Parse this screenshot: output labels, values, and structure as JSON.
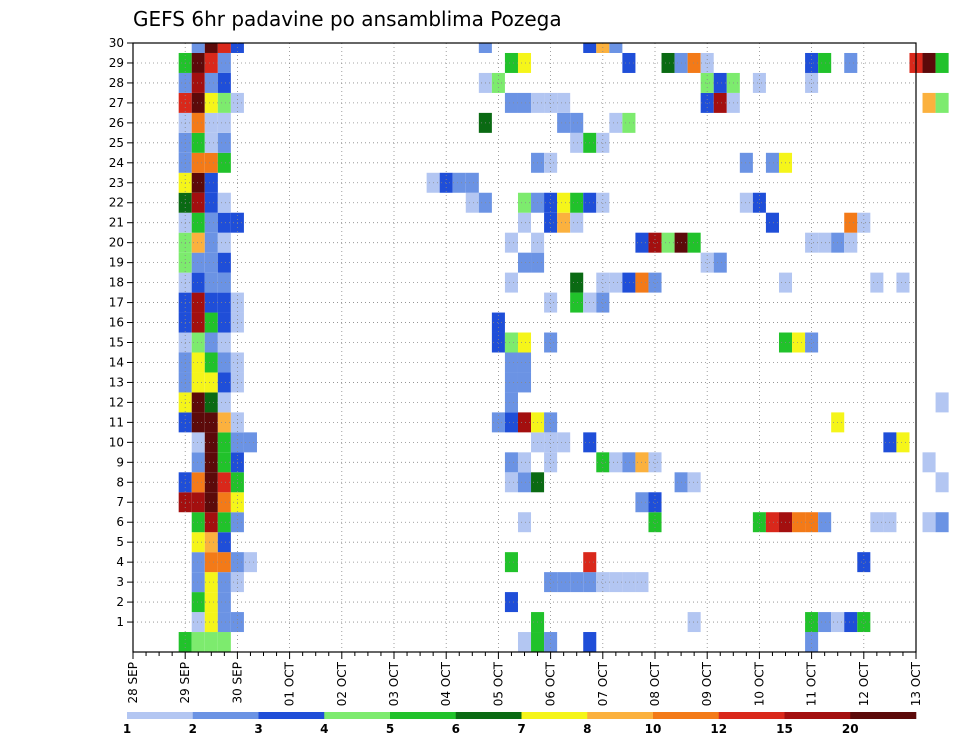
{
  "chart_data": {
    "type": "heatmap",
    "title": "GEFS 6hr padavine po ansamblima Pozega",
    "x_labels": [
      "28 SEP",
      "29 SEP",
      "30 SEP",
      "01 OCT",
      "02 OCT",
      "03 OCT",
      "04 OCT",
      "05 OCT",
      "06 OCT",
      "07 OCT",
      "08 OCT",
      "09 OCT",
      "10 OCT",
      "11 OCT",
      "12 OCT",
      "13 OCT"
    ],
    "y_labels": [
      "1",
      "2",
      "3",
      "4",
      "5",
      "6",
      "7",
      "8",
      "9",
      "10",
      "11",
      "12",
      "13",
      "14",
      "15",
      "16",
      "17",
      "18",
      "19",
      "20",
      "21",
      "22",
      "23",
      "24",
      "25",
      "26",
      "27",
      "28",
      "29",
      "30"
    ],
    "members": 30,
    "steps_per_day": 4,
    "steps": 61,
    "x_start": "28 SEP 00Z",
    "grid": true,
    "levels": [
      1,
      2,
      3,
      4,
      5,
      6,
      7,
      8,
      10,
      12,
      15,
      20
    ],
    "level_labels": [
      "1",
      "2",
      "3",
      "4",
      "5",
      "6",
      "7",
      "8",
      "10",
      "12",
      "15",
      "20"
    ],
    "colors": [
      "#b3c6f2",
      "#6b93e4",
      "#1f4ed8",
      "#7deb6e",
      "#21c22b",
      "#0a6a13",
      "#f5f51a",
      "#fbb13e",
      "#f37a18",
      "#d9281b",
      "#a30f0f",
      "#5c0a0a"
    ],
    "precip": {
      "1": {
        "5": 1,
        "6": 7,
        "7": 2,
        "8": 2,
        "31": 5,
        "43": 1,
        "52": 5,
        "53": 2,
        "54": 1,
        "55": 3,
        "56": 5
      },
      "2": {
        "5": 5,
        "6": 7,
        "7": 2,
        "29": 3
      },
      "3": {
        "5": 2,
        "6": 7,
        "7": 2,
        "8": 1,
        "32": 2,
        "33": 2,
        "34": 2,
        "35": 2,
        "36": 1,
        "37": 1,
        "38": 1,
        "39": 1
      },
      "4": {
        "5": 2,
        "6": 9,
        "7": 9,
        "8": 2,
        "9": 1,
        "29": 5,
        "35": 10,
        "56": 3
      },
      "5": {
        "5": 7,
        "6": 8,
        "7": 3
      },
      "6": {
        "5": 5,
        "6": 11,
        "7": 5,
        "8": 2,
        "30": 1,
        "40": 5,
        "48": 5,
        "49": 10,
        "50": 11,
        "51": 9,
        "52": 9,
        "53": 2,
        "57": 1,
        "58": 1,
        "61": 1,
        "62": 2
      },
      "7": {
        "4": 11,
        "5": 11,
        "6": 12,
        "7": 9,
        "8": 7,
        "39": 2,
        "40": 3
      },
      "8": {
        "4": 3,
        "5": 9,
        "6": 12,
        "7": 10,
        "8": 5,
        "29": 1,
        "30": 2,
        "31": 6,
        "42": 2,
        "43": 1,
        "62": 1
      },
      "9": {
        "5": 2,
        "6": 12,
        "7": 5,
        "8": 3,
        "29": 2,
        "30": 1,
        "32": 1,
        "36": 5,
        "37": 1,
        "38": 2,
        "39": 8,
        "40": 1,
        "61": 1
      },
      "10": {
        "5": 1,
        "6": 12,
        "7": 5,
        "8": 2,
        "9": 2,
        "31": 1,
        "32": 1,
        "33": 1,
        "35": 3,
        "58": 3,
        "59": 7
      },
      "11": {
        "4": 3,
        "5": 12,
        "6": 12,
        "7": 8,
        "8": 1,
        "28": 2,
        "29": 3,
        "30": 11,
        "31": 7,
        "32": 2,
        "54": 7
      },
      "12": {
        "4": 7,
        "5": 12,
        "6": 6,
        "7": 1,
        "29": 2,
        "62": 1
      },
      "13": {
        "4": 2,
        "5": 7,
        "6": 7,
        "7": 3,
        "8": 1,
        "29": 2,
        "30": 2
      },
      "14": {
        "4": 2,
        "5": 7,
        "6": 5,
        "7": 2,
        "8": 1,
        "29": 2,
        "30": 2
      },
      "15": {
        "4": 1,
        "5": 4,
        "6": 2,
        "7": 1,
        "28": 3,
        "29": 4,
        "30": 7,
        "32": 2,
        "50": 5,
        "51": 7,
        "52": 2
      },
      "16": {
        "4": 3,
        "5": 11,
        "6": 5,
        "7": 3,
        "8": 1,
        "28": 3
      },
      "17": {
        "4": 3,
        "5": 11,
        "6": 3,
        "7": 3,
        "8": 1,
        "32": 1,
        "34": 5,
        "35": 1,
        "36": 2
      },
      "18": {
        "4": 1,
        "5": 3,
        "6": 2,
        "7": 2,
        "29": 1,
        "34": 6,
        "36": 1,
        "37": 1,
        "38": 3,
        "39": 9,
        "40": 2,
        "50": 1,
        "57": 1,
        "59": 1
      },
      "19": {
        "4": 4,
        "5": 2,
        "6": 2,
        "7": 3,
        "30": 2,
        "31": 2,
        "44": 1,
        "45": 2
      },
      "20": {
        "4": 4,
        "5": 8,
        "6": 2,
        "7": 1,
        "29": 1,
        "31": 1,
        "39": 3,
        "40": 11,
        "41": 4,
        "42": 12,
        "43": 5,
        "52": 1,
        "53": 1,
        "54": 2,
        "55": 1
      },
      "21": {
        "4": 1,
        "5": 5,
        "6": 2,
        "7": 3,
        "8": 3,
        "30": 1,
        "32": 3,
        "33": 8,
        "34": 1,
        "49": 3,
        "55": 9,
        "56": 1
      },
      "22": {
        "4": 6,
        "5": 11,
        "6": 3,
        "7": 1,
        "26": 1,
        "27": 2,
        "30": 4,
        "31": 2,
        "32": 3,
        "33": 7,
        "34": 5,
        "35": 3,
        "36": 1,
        "47": 1,
        "48": 3
      },
      "23": {
        "4": 7,
        "5": 12,
        "6": 3,
        "23": 1,
        "24": 3,
        "25": 2,
        "26": 2
      },
      "24": {
        "4": 2,
        "5": 9,
        "6": 9,
        "7": 5,
        "31": 2,
        "32": 1,
        "47": 2,
        "49": 2,
        "50": 7
      },
      "25": {
        "4": 2,
        "5": 5,
        "6": 1,
        "7": 2,
        "34": 1,
        "35": 5,
        "36": 1
      },
      "26": {
        "4": 1,
        "5": 9,
        "6": 1,
        "7": 1,
        "27": 6,
        "33": 2,
        "34": 2,
        "37": 1,
        "38": 4
      },
      "27": {
        "4": 10,
        "5": 12,
        "6": 7,
        "7": 4,
        "8": 1,
        "29": 2,
        "30": 2,
        "31": 1,
        "32": 1,
        "33": 1,
        "44": 3,
        "45": 11,
        "46": 1,
        "61": 8,
        "62": 4
      },
      "28": {
        "4": 2,
        "5": 11,
        "6": 2,
        "7": 3,
        "27": 1,
        "28": 4,
        "44": 4,
        "45": 3,
        "46": 4,
        "48": 1,
        "52": 1
      },
      "29": {
        "4": 5,
        "5": 12,
        "6": 10,
        "7": 2,
        "29": 5,
        "30": 7,
        "38": 3,
        "41": 6,
        "42": 2,
        "43": 9,
        "44": 1,
        "52": 3,
        "53": 5,
        "55": 2,
        "60": 10,
        "61": 12,
        "62": 5
      },
      "30": {
        "5": 2,
        "6": 12,
        "7": 10,
        "8": 3,
        "27": 2,
        "35": 3,
        "36": 8,
        "37": 2
      },
      "0": {
        "4": 5,
        "5": 4,
        "6": 4,
        "7": 4,
        "30": 1,
        "31": 5,
        "32": 2,
        "35": 3,
        "52": 2
      }
    }
  }
}
